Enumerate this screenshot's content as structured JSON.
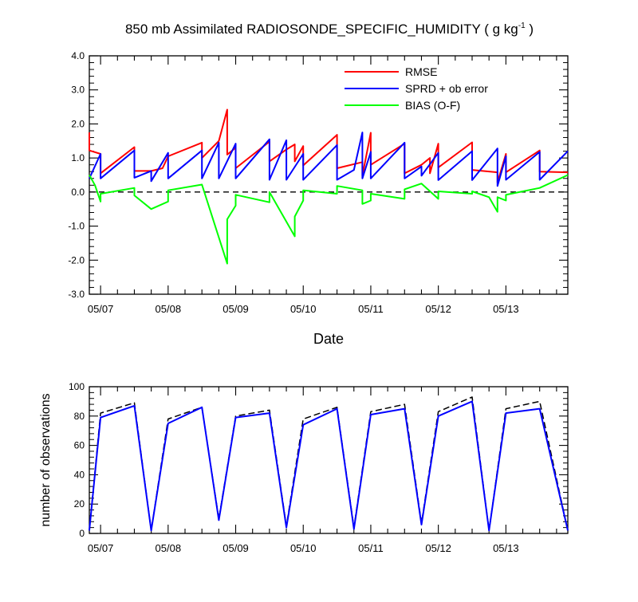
{
  "title": {
    "main": "850 mb Assimilated RADIOSONDE_SPECIFIC_HUMIDITY ( g kg",
    "sup": "-1",
    "end": " )"
  },
  "colors": {
    "rmse": "#ff0000",
    "sprd": "#0000ff",
    "bias": "#00ff00",
    "axis": "#000000"
  },
  "chart_data": [
    {
      "type": "line",
      "xlabel": "Date",
      "ylabel": "",
      "xlim": [
        "05/06 20:00",
        "05/13 22:00"
      ],
      "ylim": [
        -3.0,
        4.0
      ],
      "y_ticks": [
        "-3.0",
        "-2.0",
        "-1.0",
        "0.0",
        "1.0",
        "2.0",
        "3.0",
        "4.0"
      ],
      "x_ticks": [
        "05/07",
        "05/08",
        "05/09",
        "05/10",
        "05/11",
        "05/12",
        "05/13"
      ],
      "reference_line": {
        "y": 0.0,
        "style": "dashed"
      },
      "legend": {
        "placement": "top-right",
        "entries": [
          "RMSE",
          "SPRD + ob error",
          "BIAS (O-F)"
        ]
      },
      "series": [
        {
          "name": "RMSE",
          "color": "#ff0000",
          "points": [
            [
              "05/06 20:00",
              1.75
            ],
            [
              "05/06 20:00",
              1.22
            ],
            [
              "05/07 00:00",
              1.12
            ],
            [
              "05/07 00:00",
              0.55
            ],
            [
              "05/07 12:00",
              1.32
            ],
            [
              "05/07 12:00",
              0.62
            ],
            [
              "05/07 18:00",
              0.62
            ],
            [
              "05/07 22:00",
              0.7
            ],
            [
              "05/08 00:00",
              1.05
            ],
            [
              "05/08 12:00",
              1.45
            ],
            [
              "05/08 12:00",
              1.0
            ],
            [
              "05/08 18:00",
              1.5
            ],
            [
              "05/08 21:00",
              2.42
            ],
            [
              "05/08 21:00",
              1.1
            ],
            [
              "05/09 00:00",
              1.3
            ],
            [
              "05/09 00:00",
              0.7
            ],
            [
              "05/09 12:00",
              1.48
            ],
            [
              "05/09 12:00",
              0.9
            ],
            [
              "05/09 18:00",
              1.25
            ],
            [
              "05/09 21:00",
              1.4
            ],
            [
              "05/09 21:00",
              0.9
            ],
            [
              "05/10 00:00",
              1.35
            ],
            [
              "05/10 00:00",
              0.78
            ],
            [
              "05/10 12:00",
              1.68
            ],
            [
              "05/10 12:00",
              0.7
            ],
            [
              "05/10 21:00",
              0.88
            ],
            [
              "05/10 21:00",
              0.48
            ],
            [
              "05/11 00:00",
              1.74
            ],
            [
              "05/11 00:00",
              0.8
            ],
            [
              "05/11 12:00",
              1.42
            ],
            [
              "05/11 12:00",
              0.55
            ],
            [
              "05/11 18:00",
              0.8
            ],
            [
              "05/11 21:00",
              1.0
            ],
            [
              "05/11 21:00",
              0.55
            ],
            [
              "05/12 00:00",
              1.42
            ],
            [
              "05/12 00:00",
              0.72
            ],
            [
              "05/12 12:00",
              1.46
            ],
            [
              "05/12 12:00",
              0.65
            ],
            [
              "05/12 21:00",
              0.58
            ],
            [
              "05/12 21:00",
              0.28
            ],
            [
              "05/13 00:00",
              1.12
            ],
            [
              "05/13 00:00",
              0.58
            ],
            [
              "05/13 12:00",
              1.22
            ],
            [
              "05/13 12:00",
              0.6
            ],
            [
              "05/13 22:00",
              0.58
            ]
          ]
        },
        {
          "name": "SPRD + ob error",
          "color": "#0000ff",
          "points": [
            [
              "05/06 20:00",
              0.4
            ],
            [
              "05/07 00:00",
              1.12
            ],
            [
              "05/07 00:00",
              0.4
            ],
            [
              "05/07 12:00",
              1.22
            ],
            [
              "05/07 12:00",
              0.42
            ],
            [
              "05/07 18:00",
              0.62
            ],
            [
              "05/07 18:00",
              0.32
            ],
            [
              "05/08 00:00",
              1.15
            ],
            [
              "05/08 00:00",
              0.4
            ],
            [
              "05/08 12:00",
              1.22
            ],
            [
              "05/08 12:00",
              0.4
            ],
            [
              "05/08 18:00",
              1.45
            ],
            [
              "05/08 18:00",
              0.4
            ],
            [
              "05/09 00:00",
              1.42
            ],
            [
              "05/09 00:00",
              0.4
            ],
            [
              "05/09 12:00",
              1.55
            ],
            [
              "05/09 12:00",
              0.36
            ],
            [
              "05/09 18:00",
              1.52
            ],
            [
              "05/09 18:00",
              0.36
            ],
            [
              "05/10 00:00",
              1.12
            ],
            [
              "05/10 00:00",
              0.36
            ],
            [
              "05/10 12:00",
              1.38
            ],
            [
              "05/10 12:00",
              0.36
            ],
            [
              "05/10 18:00",
              0.65
            ],
            [
              "05/10 21:00",
              1.75
            ],
            [
              "05/10 21:00",
              0.4
            ],
            [
              "05/11 00:00",
              1.18
            ],
            [
              "05/11 00:00",
              0.4
            ],
            [
              "05/11 12:00",
              1.45
            ],
            [
              "05/11 12:00",
              0.4
            ],
            [
              "05/11 18:00",
              0.75
            ],
            [
              "05/11 18:00",
              0.48
            ],
            [
              "05/12 00:00",
              1.15
            ],
            [
              "05/12 00:00",
              0.35
            ],
            [
              "05/12 12:00",
              1.2
            ],
            [
              "05/12 12:00",
              0.35
            ],
            [
              "05/12 21:00",
              1.28
            ],
            [
              "05/12 21:00",
              0.18
            ],
            [
              "05/13 00:00",
              1.05
            ],
            [
              "05/13 00:00",
              0.36
            ],
            [
              "05/13 12:00",
              1.18
            ],
            [
              "05/13 12:00",
              0.36
            ],
            [
              "05/13 22:00",
              1.2
            ]
          ]
        },
        {
          "name": "BIAS (O-F)",
          "color": "#00ff00",
          "points": [
            [
              "05/06 20:00",
              0.5
            ],
            [
              "05/06 22:00",
              0.2
            ],
            [
              "05/07 00:00",
              -0.28
            ],
            [
              "05/07 00:00",
              -0.05
            ],
            [
              "05/07 12:00",
              0.12
            ],
            [
              "05/07 12:00",
              -0.1
            ],
            [
              "05/07 18:00",
              -0.5
            ],
            [
              "05/08 00:00",
              -0.28
            ],
            [
              "05/08 00:00",
              0.05
            ],
            [
              "05/08 12:00",
              0.22
            ],
            [
              "05/08 21:00",
              -2.1
            ],
            [
              "05/08 21:00",
              -0.8
            ],
            [
              "05/09 00:00",
              -0.4
            ],
            [
              "05/09 00:00",
              -0.08
            ],
            [
              "05/09 12:00",
              -0.3
            ],
            [
              "05/09 12:00",
              0.0
            ],
            [
              "05/09 21:00",
              -1.3
            ],
            [
              "05/09 21:00",
              -0.72
            ],
            [
              "05/10 00:00",
              -0.25
            ],
            [
              "05/10 00:00",
              0.05
            ],
            [
              "05/10 12:00",
              -0.05
            ],
            [
              "05/10 12:00",
              0.18
            ],
            [
              "05/10 21:00",
              0.05
            ],
            [
              "05/10 21:00",
              -0.35
            ],
            [
              "05/11 00:00",
              -0.25
            ],
            [
              "05/11 00:00",
              -0.05
            ],
            [
              "05/11 12:00",
              -0.2
            ],
            [
              "05/11 12:00",
              0.08
            ],
            [
              "05/11 18:00",
              0.25
            ],
            [
              "05/12 00:00",
              -0.2
            ],
            [
              "05/12 00:00",
              0.02
            ],
            [
              "05/12 12:00",
              -0.05
            ],
            [
              "05/12 12:00",
              0.02
            ],
            [
              "05/12 18:00",
              -0.15
            ],
            [
              "05/12 21:00",
              -0.58
            ],
            [
              "05/12 21:00",
              -0.15
            ],
            [
              "05/13 00:00",
              -0.25
            ],
            [
              "05/13 00:00",
              -0.08
            ],
            [
              "05/13 12:00",
              0.12
            ],
            [
              "05/13 22:00",
              0.5
            ]
          ]
        }
      ]
    },
    {
      "type": "line",
      "xlabel": "",
      "ylabel": "number of observations",
      "xlim": [
        "05/06 20:00",
        "05/13 22:00"
      ],
      "ylim": [
        0,
        100
      ],
      "y_ticks": [
        "0",
        "20",
        "40",
        "60",
        "80",
        "100"
      ],
      "x_ticks": [
        "05/07",
        "05/08",
        "05/09",
        "05/10",
        "05/11",
        "05/12",
        "05/13"
      ],
      "series": [
        {
          "name": "",
          "style": "dashed",
          "color": "#000000",
          "points": [
            [
              "05/06 20:00",
              2
            ],
            [
              "05/07 00:00",
              82
            ],
            [
              "05/07 12:00",
              89
            ],
            [
              "05/07 18:00",
              2
            ],
            [
              "05/08 00:00",
              78
            ],
            [
              "05/08 12:00",
              86
            ],
            [
              "05/08 18:00",
              10
            ],
            [
              "05/09 00:00",
              80
            ],
            [
              "05/09 12:00",
              84
            ],
            [
              "05/09 18:00",
              5
            ],
            [
              "05/10 00:00",
              78
            ],
            [
              "05/10 12:00",
              86
            ],
            [
              "05/10 18:00",
              4
            ],
            [
              "05/11 00:00",
              83
            ],
            [
              "05/11 12:00",
              88
            ],
            [
              "05/11 18:00",
              7
            ],
            [
              "05/12 00:00",
              83
            ],
            [
              "05/12 12:00",
              93
            ],
            [
              "05/12 18:00",
              2
            ],
            [
              "05/13 00:00",
              85
            ],
            [
              "05/13 12:00",
              90
            ],
            [
              "05/13 22:00",
              2
            ]
          ]
        },
        {
          "name": "",
          "style": "solid",
          "color": "#0000ff",
          "points": [
            [
              "05/06 20:00",
              2
            ],
            [
              "05/07 00:00",
              79
            ],
            [
              "05/07 12:00",
              87
            ],
            [
              "05/07 18:00",
              2
            ],
            [
              "05/08 00:00",
              75
            ],
            [
              "05/08 12:00",
              86
            ],
            [
              "05/08 18:00",
              9
            ],
            [
              "05/09 00:00",
              79
            ],
            [
              "05/09 12:00",
              82
            ],
            [
              "05/09 18:00",
              4
            ],
            [
              "05/10 00:00",
              74
            ],
            [
              "05/10 12:00",
              85
            ],
            [
              "05/10 18:00",
              3
            ],
            [
              "05/11 00:00",
              81
            ],
            [
              "05/11 12:00",
              85
            ],
            [
              "05/11 18:00",
              6
            ],
            [
              "05/12 00:00",
              80
            ],
            [
              "05/12 12:00",
              90
            ],
            [
              "05/12 18:00",
              2
            ],
            [
              "05/13 00:00",
              82
            ],
            [
              "05/13 12:00",
              85
            ],
            [
              "05/13 22:00",
              2
            ]
          ]
        }
      ]
    }
  ]
}
